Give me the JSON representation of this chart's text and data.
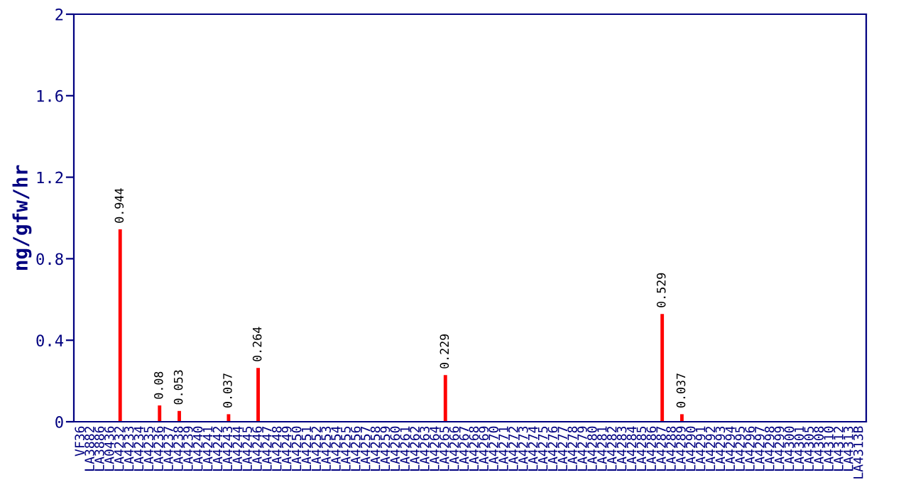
{
  "chart_data": {
    "type": "bar",
    "ylabel": "ng/gfw/hr",
    "categories": [
      "VF36",
      "LA3882",
      "LA3886",
      "LA0436",
      "LA4232",
      "LA4233",
      "LA4234",
      "LA4235",
      "LA4236",
      "LA4237",
      "LA4238",
      "LA4239",
      "LA4240",
      "LA4241",
      "LA4242",
      "LA4243",
      "LA4244",
      "LA4245",
      "LA4246",
      "LA4247",
      "LA4248",
      "LA4249",
      "LA4250",
      "LA4251",
      "LA4252",
      "LA4253",
      "LA4254",
      "LA4255",
      "LA4256",
      "LA4257",
      "LA4258",
      "LA4259",
      "LA4260",
      "LA4261",
      "LA4262",
      "LA4263",
      "LA4264",
      "LA4265",
      "LA4266",
      "LA4267",
      "LA4268",
      "LA4269",
      "LA4270",
      "LA4271",
      "LA4272",
      "LA4273",
      "LA4274",
      "LA4275",
      "LA4276",
      "LA4277",
      "LA4278",
      "LA4279",
      "LA4280",
      "LA4281",
      "LA4282",
      "LA4283",
      "LA4284",
      "LA4285",
      "LA4286",
      "LA4287",
      "LA4288",
      "LA4289",
      "LA4290",
      "LA4291",
      "LA4292",
      "LA4293",
      "LA4294",
      "LA4295",
      "LA4296",
      "LA4297",
      "LA4298",
      "LA4299",
      "LA4300",
      "LA4301",
      "LA4305",
      "LA4308",
      "LA4310",
      "LA4312",
      "LA4313",
      "LA4313B"
    ],
    "values": [
      0,
      0,
      0,
      0,
      0.944,
      0,
      0,
      0,
      0.08,
      0,
      0.053,
      0,
      0,
      0,
      0,
      0.037,
      0,
      0,
      0.264,
      0,
      0,
      0,
      0,
      0,
      0,
      0,
      0,
      0,
      0,
      0,
      0,
      0,
      0,
      0,
      0,
      0,
      0,
      0.229,
      0,
      0,
      0,
      0,
      0,
      0,
      0,
      0,
      0,
      0,
      0,
      0,
      0,
      0,
      0,
      0,
      0,
      0,
      0,
      0,
      0,
      0.529,
      0,
      0.037,
      0,
      0,
      0,
      0,
      0,
      0,
      0,
      0,
      0,
      0,
      0,
      0,
      0,
      0,
      0,
      0,
      0,
      0
    ],
    "value_labels": [
      null,
      null,
      null,
      null,
      "0.944",
      null,
      null,
      null,
      "0.08",
      null,
      "0.053",
      null,
      null,
      null,
      null,
      "0.037",
      null,
      null,
      "0.264",
      null,
      null,
      null,
      null,
      null,
      null,
      null,
      null,
      null,
      null,
      null,
      null,
      null,
      null,
      null,
      null,
      null,
      null,
      "0.229",
      null,
      null,
      null,
      null,
      null,
      null,
      null,
      null,
      null,
      null,
      null,
      null,
      null,
      null,
      null,
      null,
      null,
      null,
      null,
      null,
      null,
      "0.529",
      null,
      "0.037",
      null,
      null,
      null,
      null,
      null,
      null,
      null,
      null,
      null,
      null,
      null,
      null,
      null,
      null,
      null,
      null,
      null,
      null
    ],
    "color": "#ff0000",
    "ylim": [
      0,
      2
    ],
    "yticks": [
      0,
      0.4,
      0.8,
      1.2,
      1.6,
      2
    ],
    "grid": false,
    "legend": false
  }
}
